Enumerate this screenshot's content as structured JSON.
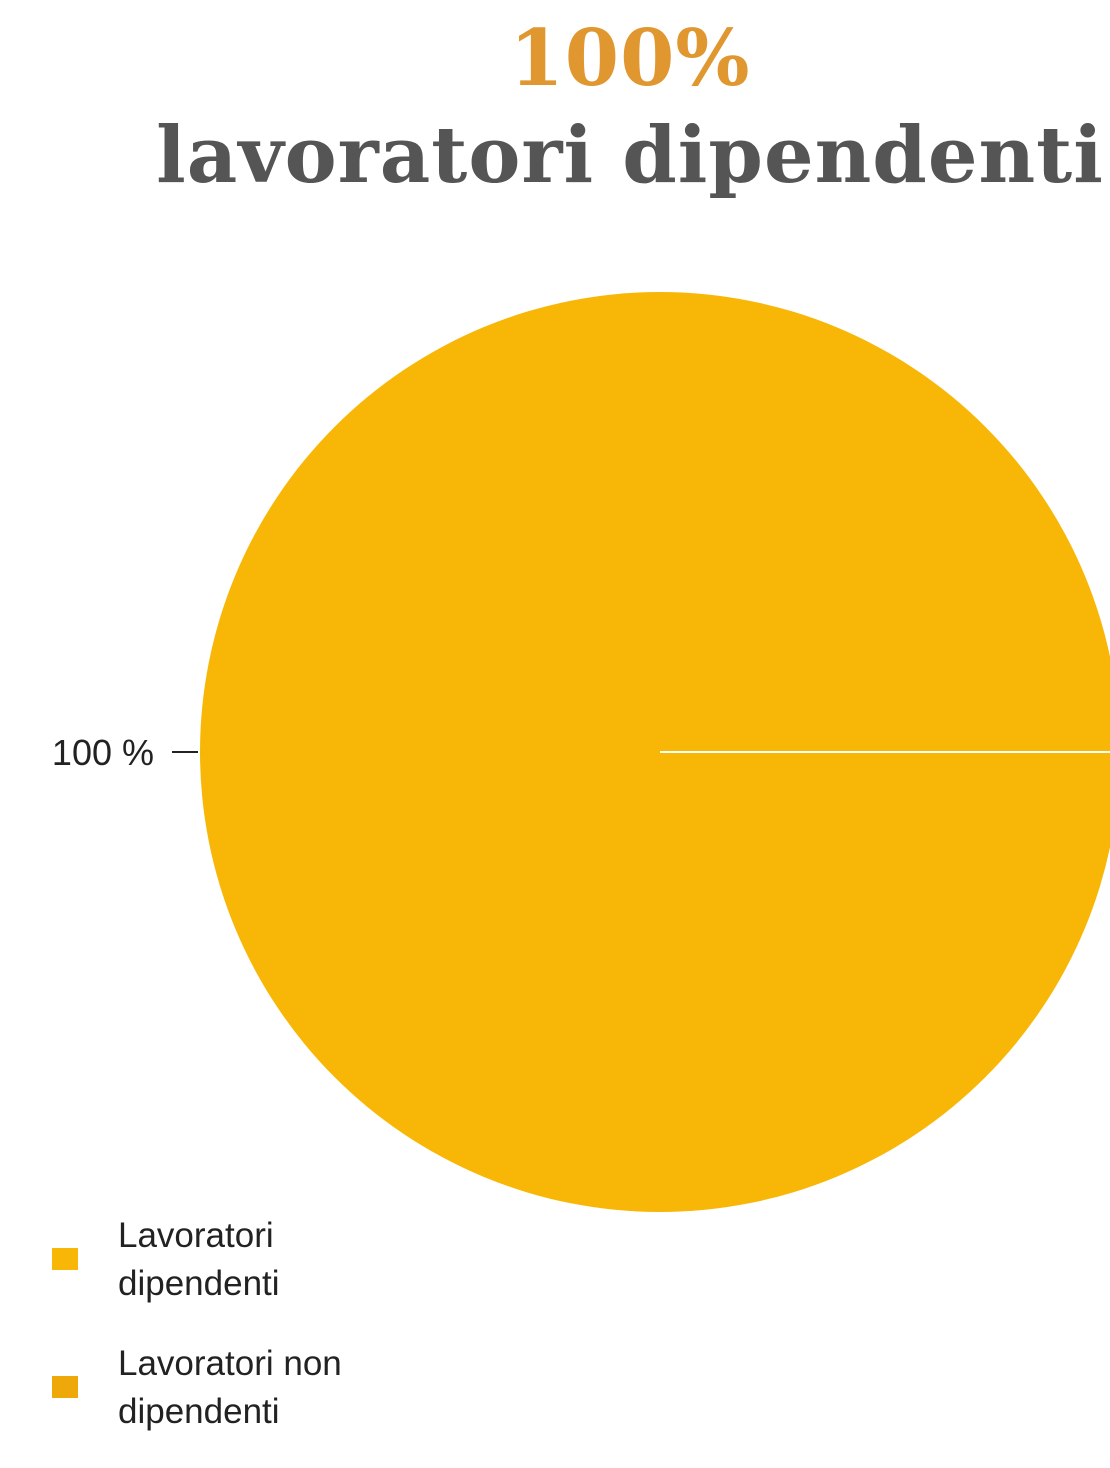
{
  "headline": {
    "value": "100%",
    "label": "lavoratori dipendenti"
  },
  "colors": {
    "headline_value": "#E0972F",
    "headline_label": "#555555",
    "slice_dipendenti": "#F8B707",
    "slice_non_dipendenti": "#EEA80A",
    "slice_separator": "#ffffff"
  },
  "chart_data": {
    "type": "pie",
    "categories": [
      "Lavoratori dipendenti",
      "Lavoratori non dipendenti"
    ],
    "values": [
      100,
      0
    ],
    "data_labels": [
      "100 %"
    ],
    "legend_position": "bottom-left",
    "title": ""
  },
  "legend": {
    "items": [
      {
        "label": "Lavoratori dipendenti",
        "color": "#F8B707"
      },
      {
        "label": "Lavoratori non dipendenti",
        "color": "#EEA80A"
      }
    ]
  }
}
